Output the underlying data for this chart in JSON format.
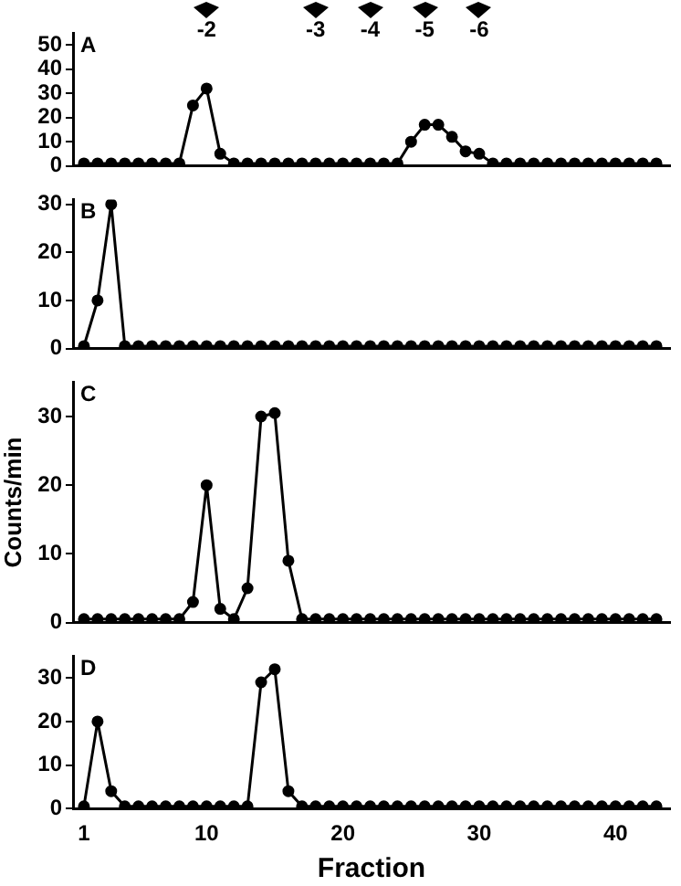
{
  "chart_data": [
    {
      "type": "line",
      "annotations": [
        "A",
        "-2",
        "-3",
        "-4",
        "-5",
        "-6"
      ],
      "x": [
        1,
        2,
        3,
        4,
        5,
        6,
        7,
        8,
        9,
        10,
        11,
        12,
        13,
        14,
        15,
        16,
        17,
        18,
        19,
        20,
        21,
        22,
        23,
        24,
        25,
        26,
        27,
        28,
        29,
        30,
        31,
        32,
        33,
        34,
        35,
        36,
        37,
        38,
        39,
        40,
        41,
        42,
        43
      ],
      "values": [
        1,
        1,
        1,
        1,
        1,
        1,
        1,
        1,
        25,
        32,
        5,
        1,
        1,
        1,
        1,
        1,
        1,
        1,
        1,
        1,
        1,
        1,
        1,
        1,
        10,
        17,
        17,
        12,
        6,
        5,
        1,
        1,
        1,
        1,
        1,
        1,
        1,
        1,
        1,
        1,
        1,
        1,
        1
      ],
      "color": "#000000",
      "marker": "circle",
      "xlim": [
        0.2,
        44
      ],
      "xticks": [
        1,
        10,
        20,
        30,
        40
      ],
      "ylim": [
        0,
        55
      ],
      "yticks": [
        0,
        10,
        20,
        30,
        40,
        50
      ],
      "tick_labels": "y"
    },
    {
      "type": "line",
      "annotations": [
        "B"
      ],
      "x": [
        1,
        2,
        3,
        4,
        5,
        6,
        7,
        8,
        9,
        10,
        11,
        12,
        13,
        14,
        15,
        16,
        17,
        18,
        19,
        20,
        21,
        22,
        23,
        24,
        25,
        26,
        27,
        28,
        29,
        30,
        31,
        32,
        33,
        34,
        35,
        36,
        37,
        38,
        39,
        40,
        41,
        42,
        43
      ],
      "values": [
        0.5,
        10,
        30,
        0.5,
        0.5,
        0.5,
        0.5,
        0.5,
        0.5,
        0.5,
        0.5,
        0.5,
        0.5,
        0.5,
        0.5,
        0.5,
        0.5,
        0.5,
        0.5,
        0.5,
        0.5,
        0.5,
        0.5,
        0.5,
        0.5,
        0.5,
        0.5,
        0.5,
        0.5,
        0.5,
        0.5,
        0.5,
        0.5,
        0.5,
        0.5,
        0.5,
        0.5,
        0.5,
        0.5,
        0.5,
        0.5,
        0.5,
        0.5
      ],
      "color": "#000000",
      "marker": "circle",
      "xlim": [
        0.2,
        44
      ],
      "xticks": [
        1,
        10,
        20,
        30,
        40
      ],
      "ylim": [
        0,
        31
      ],
      "yticks": [
        0,
        10,
        20,
        30
      ],
      "tick_labels": "y"
    },
    {
      "type": "line",
      "ylabel": "Counts/min",
      "annotations": [
        "C"
      ],
      "x": [
        1,
        2,
        3,
        4,
        5,
        6,
        7,
        8,
        9,
        10,
        11,
        12,
        13,
        14,
        15,
        16,
        17,
        18,
        19,
        20,
        21,
        22,
        23,
        24,
        25,
        26,
        27,
        28,
        29,
        30,
        31,
        32,
        33,
        34,
        35,
        36,
        37,
        38,
        39,
        40,
        41,
        42,
        43
      ],
      "values": [
        0.5,
        0.5,
        0.5,
        0.5,
        0.5,
        0.5,
        0.5,
        0.5,
        3,
        20,
        2,
        0.5,
        5,
        30,
        30.5,
        9,
        0.5,
        0.5,
        0.5,
        0.5,
        0.5,
        0.5,
        0.5,
        0.5,
        0.5,
        0.5,
        0.5,
        0.5,
        0.5,
        0.5,
        0.5,
        0.5,
        0.5,
        0.5,
        0.5,
        0.5,
        0.5,
        0.5,
        0.5,
        0.5,
        0.5,
        0.5,
        0.5
      ],
      "color": "#000000",
      "marker": "circle",
      "xlim": [
        0.2,
        44
      ],
      "xticks": [
        1,
        10,
        20,
        30,
        40
      ],
      "ylim": [
        0,
        35
      ],
      "yticks": [
        0,
        10,
        20,
        30
      ],
      "tick_labels": "y"
    },
    {
      "type": "line",
      "xlabel": "Fraction",
      "annotations": [
        "D"
      ],
      "x": [
        1,
        2,
        3,
        4,
        5,
        6,
        7,
        8,
        9,
        10,
        11,
        12,
        13,
        14,
        15,
        16,
        17,
        18,
        19,
        20,
        21,
        22,
        23,
        24,
        25,
        26,
        27,
        28,
        29,
        30,
        31,
        32,
        33,
        34,
        35,
        36,
        37,
        38,
        39,
        40,
        41,
        42,
        43
      ],
      "values": [
        0.5,
        20,
        4,
        0.5,
        0.5,
        0.5,
        0.5,
        0.5,
        0.5,
        0.5,
        0.5,
        0.5,
        0.5,
        29,
        32,
        4,
        0.5,
        0.5,
        0.5,
        0.5,
        0.5,
        0.5,
        0.5,
        0.5,
        0.5,
        0.5,
        0.5,
        0.5,
        0.5,
        0.5,
        0.5,
        0.5,
        0.5,
        0.5,
        0.5,
        0.5,
        0.5,
        0.5,
        0.5,
        0.5,
        0.5,
        0.5,
        0.5
      ],
      "color": "#000000",
      "marker": "circle",
      "xlim": [
        0.2,
        44
      ],
      "xticks": [
        1,
        10,
        20,
        30,
        40
      ],
      "ylim": [
        0,
        35
      ],
      "yticks": [
        0,
        10,
        20,
        30
      ]
    }
  ]
}
